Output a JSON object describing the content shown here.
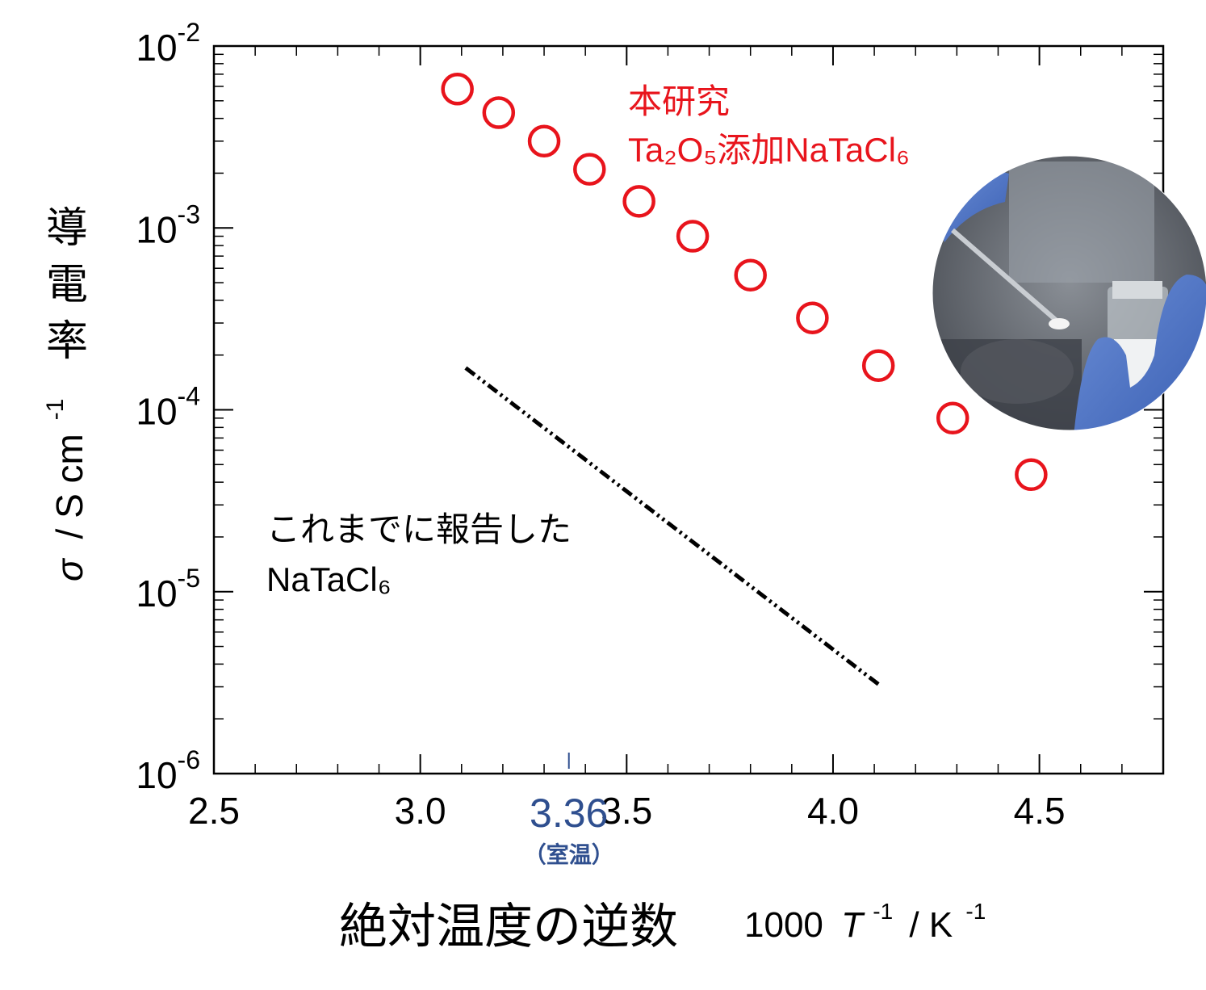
{
  "chart_data": {
    "type": "scatter",
    "x_axis": {
      "label_jp": "絶対温度の逆数",
      "label_factor": "1000",
      "label_T": "T",
      "label_sup1": "-1",
      "label_unit": "/ K",
      "label_sup2": "-1",
      "range": [
        2.5,
        4.8
      ],
      "ticks": [
        "2.5",
        "3.0",
        "3.5",
        "4.0",
        "4.5"
      ],
      "highlight_value": "3.36",
      "highlight_note": "（室温）",
      "highlight_color": "#2f4f8f"
    },
    "y_axis": {
      "label_sigma": "σ",
      "label_unit": "/ S cm",
      "label_sup": "-1",
      "label_jp": "導電率",
      "scale": "log",
      "range": [
        1e-06,
        0.01
      ],
      "ticks": [
        {
          "base": "10",
          "exp": "-2"
        },
        {
          "base": "10",
          "exp": "-3"
        },
        {
          "base": "10",
          "exp": "-4"
        },
        {
          "base": "10",
          "exp": "-5"
        },
        {
          "base": "10",
          "exp": "-6"
        }
      ]
    },
    "series": [
      {
        "name_line1": "本研究",
        "name_line2": "Ta₂O₅添加NaTaCl₆",
        "marker": "open-circle",
        "color": "#e8141c",
        "x": [
          3.09,
          3.19,
          3.3,
          3.41,
          3.53,
          3.66,
          3.8,
          3.95,
          4.11,
          4.29,
          4.48
        ],
        "y": [
          0.0058,
          0.0043,
          0.003,
          0.0021,
          0.0014,
          0.0009,
          0.00055,
          0.00032,
          0.000175,
          9e-05,
          4.4e-05
        ]
      },
      {
        "name_line1": "これまでに報告した",
        "name_line2": "NaTaCl₆",
        "marker": "dash-dot-line",
        "color": "#000000",
        "x": [
          3.11,
          4.11
        ],
        "y": [
          0.00017,
          3.1e-06
        ]
      }
    ],
    "grid": false,
    "inset_image": "photo: gloved hand holding spatula with white powder and a glass vial"
  }
}
